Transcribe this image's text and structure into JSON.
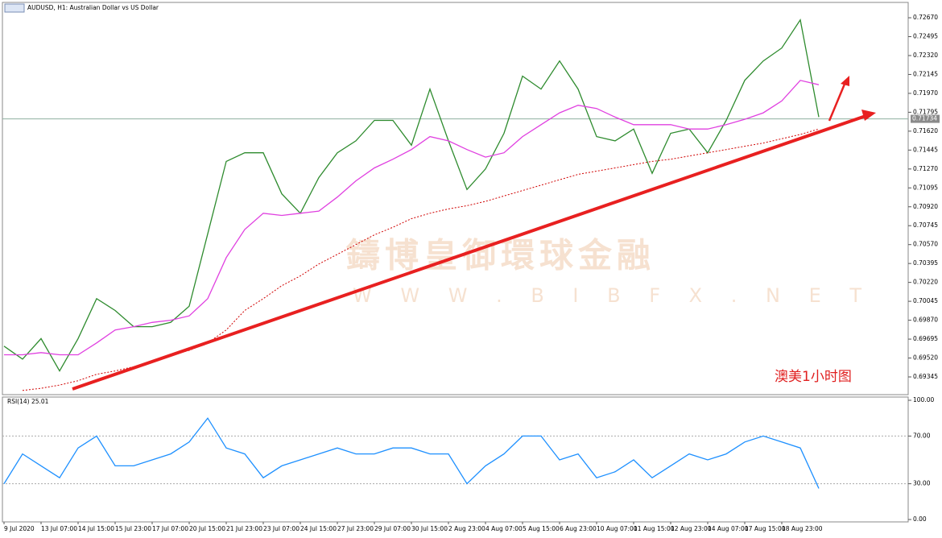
{
  "chart_data": [
    {
      "type": "line",
      "title": "AUDUSD, H1: Australian Dollar vs US Dollar",
      "categories": [
        "9 Jul 2020",
        null,
        "13 Jul 07:00",
        null,
        "14 Jul 15:00",
        null,
        "15 Jul 23:00",
        null,
        "17 Jul 07:00",
        null,
        "20 Jul 15:00",
        null,
        "21 Jul 23:00",
        null,
        "23 Jul 07:00",
        null,
        "24 Jul 15:00",
        null,
        "27 Jul 23:00",
        null,
        "29 Jul 07:00",
        null,
        "30 Jul 15:00",
        null,
        "2 Aug 23:00",
        null,
        "4 Aug 07:00",
        null,
        "5 Aug 15:00",
        null,
        "6 Aug 23:00",
        null,
        "10 Aug 07:00",
        null,
        "11 Aug 15:00",
        null,
        "12 Aug 23:00",
        null,
        "14 Aug 07:00",
        null,
        "17 Aug 15:00",
        null,
        "18 Aug 23:00",
        null,
        null
      ],
      "series": [
        {
          "color": "#2e8b2e",
          "style": "solid",
          "values": [
            0.6963,
            0.6951,
            0.697,
            0.694,
            0.697,
            0.7007,
            0.6996,
            0.6981,
            0.6981,
            0.6985,
            0.7,
            0.7067,
            0.7134,
            0.7142,
            0.7142,
            0.7104,
            0.7086,
            0.7119,
            0.7142,
            0.7153,
            0.7172,
            0.7172,
            0.7149,
            0.7201,
            0.7153,
            0.7108,
            0.7127,
            0.716,
            0.7213,
            0.7201,
            0.7227,
            0.7201,
            0.7157,
            0.7153,
            0.7164,
            0.7123,
            0.716,
            0.7164,
            0.7142,
            0.7172,
            0.7209,
            0.7227,
            0.7239,
            0.7265,
            0.7175
          ]
        },
        {
          "color": "#e040e0",
          "style": "solid",
          "values": [
            0.6955,
            0.6955,
            0.6957,
            0.6955,
            0.6955,
            0.6966,
            0.6978,
            0.6981,
            0.6985,
            0.6987,
            0.6991,
            0.7007,
            0.7045,
            0.7071,
            0.7086,
            0.7084,
            0.7086,
            0.7088,
            0.7101,
            0.7116,
            0.7128,
            0.7136,
            0.7145,
            0.7157,
            0.7153,
            0.7145,
            0.7138,
            0.7142,
            0.7157,
            0.7168,
            0.7179,
            0.7186,
            0.7183,
            0.7175,
            0.7168,
            0.7168,
            0.7168,
            0.7164,
            0.7164,
            0.7168,
            0.7173,
            0.7179,
            0.719,
            0.7209,
            0.7205
          ]
        },
        {
          "color": "#d00000",
          "style": "dotted",
          "values": [
            null,
            0.6922,
            0.6924,
            0.6927,
            0.6931,
            0.6937,
            0.694,
            0.6944,
            0.6949,
            0.6955,
            0.6959,
            0.6966,
            0.6978,
            0.6996,
            0.7007,
            0.7019,
            0.7028,
            0.7039,
            0.7048,
            0.7057,
            0.7066,
            0.7073,
            0.7081,
            0.7086,
            0.709,
            0.7093,
            0.7097,
            0.7102,
            0.7107,
            0.7112,
            0.7117,
            0.7122,
            0.7125,
            0.7128,
            0.7131,
            0.7134,
            0.7136,
            0.7139,
            0.7142,
            0.7145,
            0.7148,
            0.7151,
            0.7155,
            0.7159,
            0.7164
          ]
        }
      ],
      "ylim": [
        0.69181,
        0.72797
      ],
      "yticks": [
        {
          "value": 0.7267,
          "label": "0.72670"
        },
        {
          "value": 0.72495,
          "label": "0.72495"
        },
        {
          "value": 0.7232,
          "label": "0.72320"
        },
        {
          "value": 0.72145,
          "label": "0.72145"
        },
        {
          "value": 0.7197,
          "label": "0.71970"
        },
        {
          "value": 0.71795,
          "label": "0.71795"
        },
        {
          "value": 0.7162,
          "label": "0.71620"
        },
        {
          "value": 0.71445,
          "label": "0.71445"
        },
        {
          "value": 0.7127,
          "label": "0.71270"
        },
        {
          "value": 0.71095,
          "label": "0.71095"
        },
        {
          "value": 0.7092,
          "label": "0.70920"
        },
        {
          "value": 0.70745,
          "label": "0.70745"
        },
        {
          "value": 0.7057,
          "label": "0.70570"
        },
        {
          "value": 0.70395,
          "label": "0.70395"
        },
        {
          "value": 0.7022,
          "label": "0.70220"
        },
        {
          "value": 0.70045,
          "label": "0.70045"
        },
        {
          "value": 0.6987,
          "label": "0.69870"
        },
        {
          "value": 0.69695,
          "label": "0.69695"
        },
        {
          "value": 0.6952,
          "label": "0.69520"
        },
        {
          "value": 0.69345,
          "label": "0.69345"
        }
      ],
      "price_line": {
        "value": 0.71734,
        "label": "0.71734"
      },
      "watermark": "鑄博皇御環球金融",
      "watermark_url": "W W W . B I B F X . N E T",
      "annotation": "澳美1小时图"
    },
    {
      "type": "line",
      "title": "RSI(14) 25.01",
      "color": "#1e90ff",
      "values": [
        30,
        55,
        45,
        35,
        60,
        70,
        45,
        45,
        50,
        55,
        65,
        85,
        60,
        55,
        35,
        45,
        50,
        55,
        60,
        55,
        55,
        60,
        60,
        55,
        55,
        30,
        45,
        55,
        70,
        70,
        50,
        55,
        35,
        40,
        50,
        35,
        45,
        55,
        50,
        55,
        65,
        70,
        65,
        60,
        26
      ],
      "ylim": [
        -2,
        102.7
      ],
      "yticks": [
        {
          "value": 100,
          "label": "100.00"
        },
        {
          "value": 70,
          "label": "70.00"
        },
        {
          "value": 30,
          "label": "30.00"
        },
        {
          "value": 0,
          "label": "0.00"
        }
      ],
      "levels": [
        70,
        30
      ]
    }
  ]
}
